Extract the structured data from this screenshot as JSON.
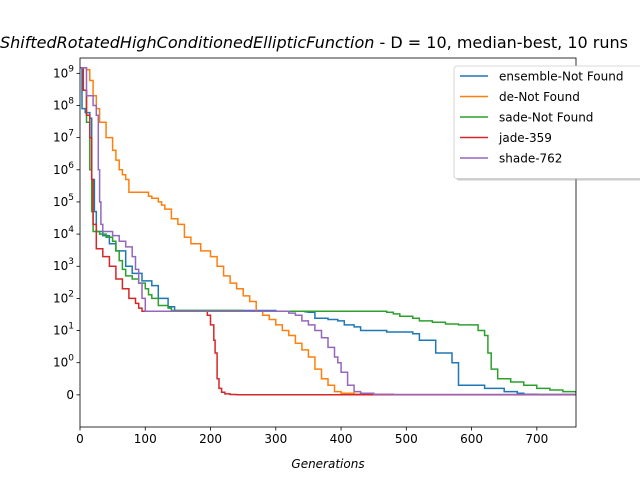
{
  "chart_data": {
    "type": "line",
    "title_function": "ShiftedRotatedHighConditionedEllipticFunction",
    "title_rest": "  - D = 10, median-best, 10 runs",
    "xlabel": "Generations",
    "ylabel": "",
    "xlim": [
      0,
      760
    ],
    "yscale": "symlog",
    "linthresh": 1,
    "ylim": [
      -1,
      3000000000
    ],
    "xticks": [
      0,
      100,
      200,
      300,
      400,
      500,
      600,
      700
    ],
    "xtick_labels": [
      "0",
      "100",
      "200",
      "300",
      "400",
      "500",
      "600",
      "700"
    ],
    "yticks": [
      0,
      1,
      10,
      100,
      1000,
      10000,
      100000,
      1000000,
      10000000,
      100000000,
      1000000000
    ],
    "ytick_labels": [
      {
        "base": "0",
        "exp": ""
      },
      {
        "base": "10",
        "exp": "0"
      },
      {
        "base": "10",
        "exp": "1"
      },
      {
        "base": "10",
        "exp": "2"
      },
      {
        "base": "10",
        "exp": "3"
      },
      {
        "base": "10",
        "exp": "4"
      },
      {
        "base": "10",
        "exp": "5"
      },
      {
        "base": "10",
        "exp": "6"
      },
      {
        "base": "10",
        "exp": "7"
      },
      {
        "base": "10",
        "exp": "8"
      },
      {
        "base": "10",
        "exp": "9"
      }
    ],
    "grid": false,
    "legend_position": "top-right",
    "series": [
      {
        "name": "ensemble-Not Found",
        "color": "#1f77b4",
        "points": [
          [
            0,
            1500000000
          ],
          [
            3,
            80000000
          ],
          [
            8,
            60000000
          ],
          [
            15,
            40000000
          ],
          [
            18,
            500000
          ],
          [
            22,
            50000
          ],
          [
            25,
            12000
          ],
          [
            35,
            9000
          ],
          [
            45,
            5000
          ],
          [
            55,
            3000
          ],
          [
            70,
            1000
          ],
          [
            80,
            600
          ],
          [
            95,
            350
          ],
          [
            110,
            250
          ],
          [
            120,
            100
          ],
          [
            135,
            55
          ],
          [
            145,
            42
          ],
          [
            300,
            40
          ],
          [
            340,
            40
          ],
          [
            345,
            38
          ],
          [
            350,
            37
          ],
          [
            360,
            24
          ],
          [
            380,
            22
          ],
          [
            395,
            20
          ],
          [
            405,
            15
          ],
          [
            420,
            13
          ],
          [
            430,
            10
          ],
          [
            470,
            9
          ],
          [
            500,
            9
          ],
          [
            510,
            8
          ],
          [
            520,
            5
          ],
          [
            540,
            5
          ],
          [
            545,
            2
          ],
          [
            570,
            1
          ],
          [
            580,
            0.3
          ],
          [
            610,
            0.3
          ],
          [
            620,
            0.2
          ],
          [
            640,
            0.2
          ],
          [
            650,
            0.1
          ],
          [
            670,
            0.05
          ],
          [
            680,
            0.02
          ],
          [
            700,
            0.01
          ],
          [
            760,
            0.005
          ]
        ]
      },
      {
        "name": "de-Not Found",
        "color": "#ff7f0e",
        "points": [
          [
            0,
            1500000000
          ],
          [
            5,
            1500000000
          ],
          [
            10,
            1300000000
          ],
          [
            15,
            600000000
          ],
          [
            20,
            200000000
          ],
          [
            25,
            80000000
          ],
          [
            30,
            30000000
          ],
          [
            40,
            10000000
          ],
          [
            50,
            4000000
          ],
          [
            55,
            2000000
          ],
          [
            60,
            1000000
          ],
          [
            65,
            700000
          ],
          [
            70,
            500000
          ],
          [
            75,
            200000
          ],
          [
            100,
            200000
          ],
          [
            105,
            150000
          ],
          [
            110,
            130000
          ],
          [
            120,
            100000
          ],
          [
            125,
            80000
          ],
          [
            130,
            60000
          ],
          [
            140,
            30000
          ],
          [
            150,
            20000
          ],
          [
            160,
            8000
          ],
          [
            170,
            5000
          ],
          [
            185,
            3000
          ],
          [
            200,
            2000
          ],
          [
            210,
            1000
          ],
          [
            220,
            500
          ],
          [
            230,
            300
          ],
          [
            240,
            200
          ],
          [
            250,
            120
          ],
          [
            260,
            80
          ],
          [
            270,
            40
          ],
          [
            280,
            30
          ],
          [
            290,
            22
          ],
          [
            300,
            15
          ],
          [
            310,
            10
          ],
          [
            320,
            7
          ],
          [
            330,
            4
          ],
          [
            340,
            2.5
          ],
          [
            350,
            1.5
          ],
          [
            360,
            0.8
          ],
          [
            370,
            0.5
          ],
          [
            380,
            0.3
          ],
          [
            390,
            0.1
          ],
          [
            400,
            0.05
          ],
          [
            420,
            0.02
          ],
          [
            450,
            0.005
          ],
          [
            760,
            0.002
          ]
        ]
      },
      {
        "name": "sade-Not Found",
        "color": "#2ca02c",
        "points": [
          [
            0,
            1500000000
          ],
          [
            5,
            300000000
          ],
          [
            10,
            30000000
          ],
          [
            15,
            1000000
          ],
          [
            18,
            50000
          ],
          [
            20,
            12000
          ],
          [
            30,
            10000
          ],
          [
            40,
            8000
          ],
          [
            50,
            6000
          ],
          [
            55,
            3000
          ],
          [
            60,
            1500
          ],
          [
            65,
            800
          ],
          [
            70,
            500
          ],
          [
            80,
            400
          ],
          [
            90,
            300
          ],
          [
            100,
            200
          ],
          [
            105,
            130
          ],
          [
            110,
            100
          ],
          [
            120,
            60
          ],
          [
            135,
            50
          ],
          [
            140,
            42
          ],
          [
            250,
            40
          ],
          [
            460,
            40
          ],
          [
            470,
            37
          ],
          [
            480,
            33
          ],
          [
            490,
            28
          ],
          [
            500,
            28
          ],
          [
            510,
            24
          ],
          [
            520,
            20
          ],
          [
            530,
            20
          ],
          [
            540,
            18
          ],
          [
            560,
            16
          ],
          [
            580,
            15
          ],
          [
            600,
            15
          ],
          [
            610,
            10
          ],
          [
            620,
            7
          ],
          [
            625,
            2
          ],
          [
            630,
            0.8
          ],
          [
            640,
            0.5
          ],
          [
            660,
            0.4
          ],
          [
            680,
            0.3
          ],
          [
            700,
            0.2
          ],
          [
            720,
            0.15
          ],
          [
            740,
            0.1
          ],
          [
            760,
            0.05
          ]
        ]
      },
      {
        "name": "jade-359",
        "color": "#d62728",
        "points": [
          [
            0,
            1500000000
          ],
          [
            5,
            300000000
          ],
          [
            10,
            50000000
          ],
          [
            15,
            10000000
          ],
          [
            18,
            500000
          ],
          [
            20,
            20000
          ],
          [
            25,
            3500
          ],
          [
            35,
            2000
          ],
          [
            45,
            1000
          ],
          [
            55,
            400
          ],
          [
            65,
            200
          ],
          [
            75,
            100
          ],
          [
            85,
            70
          ],
          [
            90,
            50
          ],
          [
            95,
            40
          ],
          [
            180,
            40
          ],
          [
            190,
            40
          ],
          [
            195,
            30
          ],
          [
            200,
            15
          ],
          [
            205,
            5
          ],
          [
            207,
            2
          ],
          [
            210,
            0.5
          ],
          [
            213,
            0.2
          ],
          [
            217,
            0.08
          ],
          [
            222,
            0.03
          ],
          [
            230,
            0.01
          ],
          [
            240,
            0.005
          ],
          [
            760,
            0.005
          ]
        ]
      },
      {
        "name": "shade-762",
        "color": "#9467bd",
        "points": [
          [
            0,
            1500000000
          ],
          [
            10,
            200000000
          ],
          [
            20,
            100000000
          ],
          [
            25,
            50000000
          ],
          [
            28,
            1000000
          ],
          [
            30,
            100000
          ],
          [
            32,
            20000
          ],
          [
            35,
            12000
          ],
          [
            50,
            9000
          ],
          [
            60,
            6000
          ],
          [
            70,
            4000
          ],
          [
            80,
            2000
          ],
          [
            85,
            800
          ],
          [
            90,
            300
          ],
          [
            95,
            100
          ],
          [
            100,
            40
          ],
          [
            310,
            40
          ],
          [
            320,
            35
          ],
          [
            330,
            30
          ],
          [
            340,
            20
          ],
          [
            350,
            15
          ],
          [
            360,
            10
          ],
          [
            370,
            6
          ],
          [
            380,
            3
          ],
          [
            390,
            1.5
          ],
          [
            395,
            1
          ],
          [
            400,
            0.7
          ],
          [
            410,
            0.3
          ],
          [
            420,
            0.1
          ],
          [
            430,
            0.05
          ],
          [
            450,
            0.02
          ],
          [
            480,
            0.01
          ],
          [
            760,
            0.005
          ]
        ]
      }
    ]
  }
}
